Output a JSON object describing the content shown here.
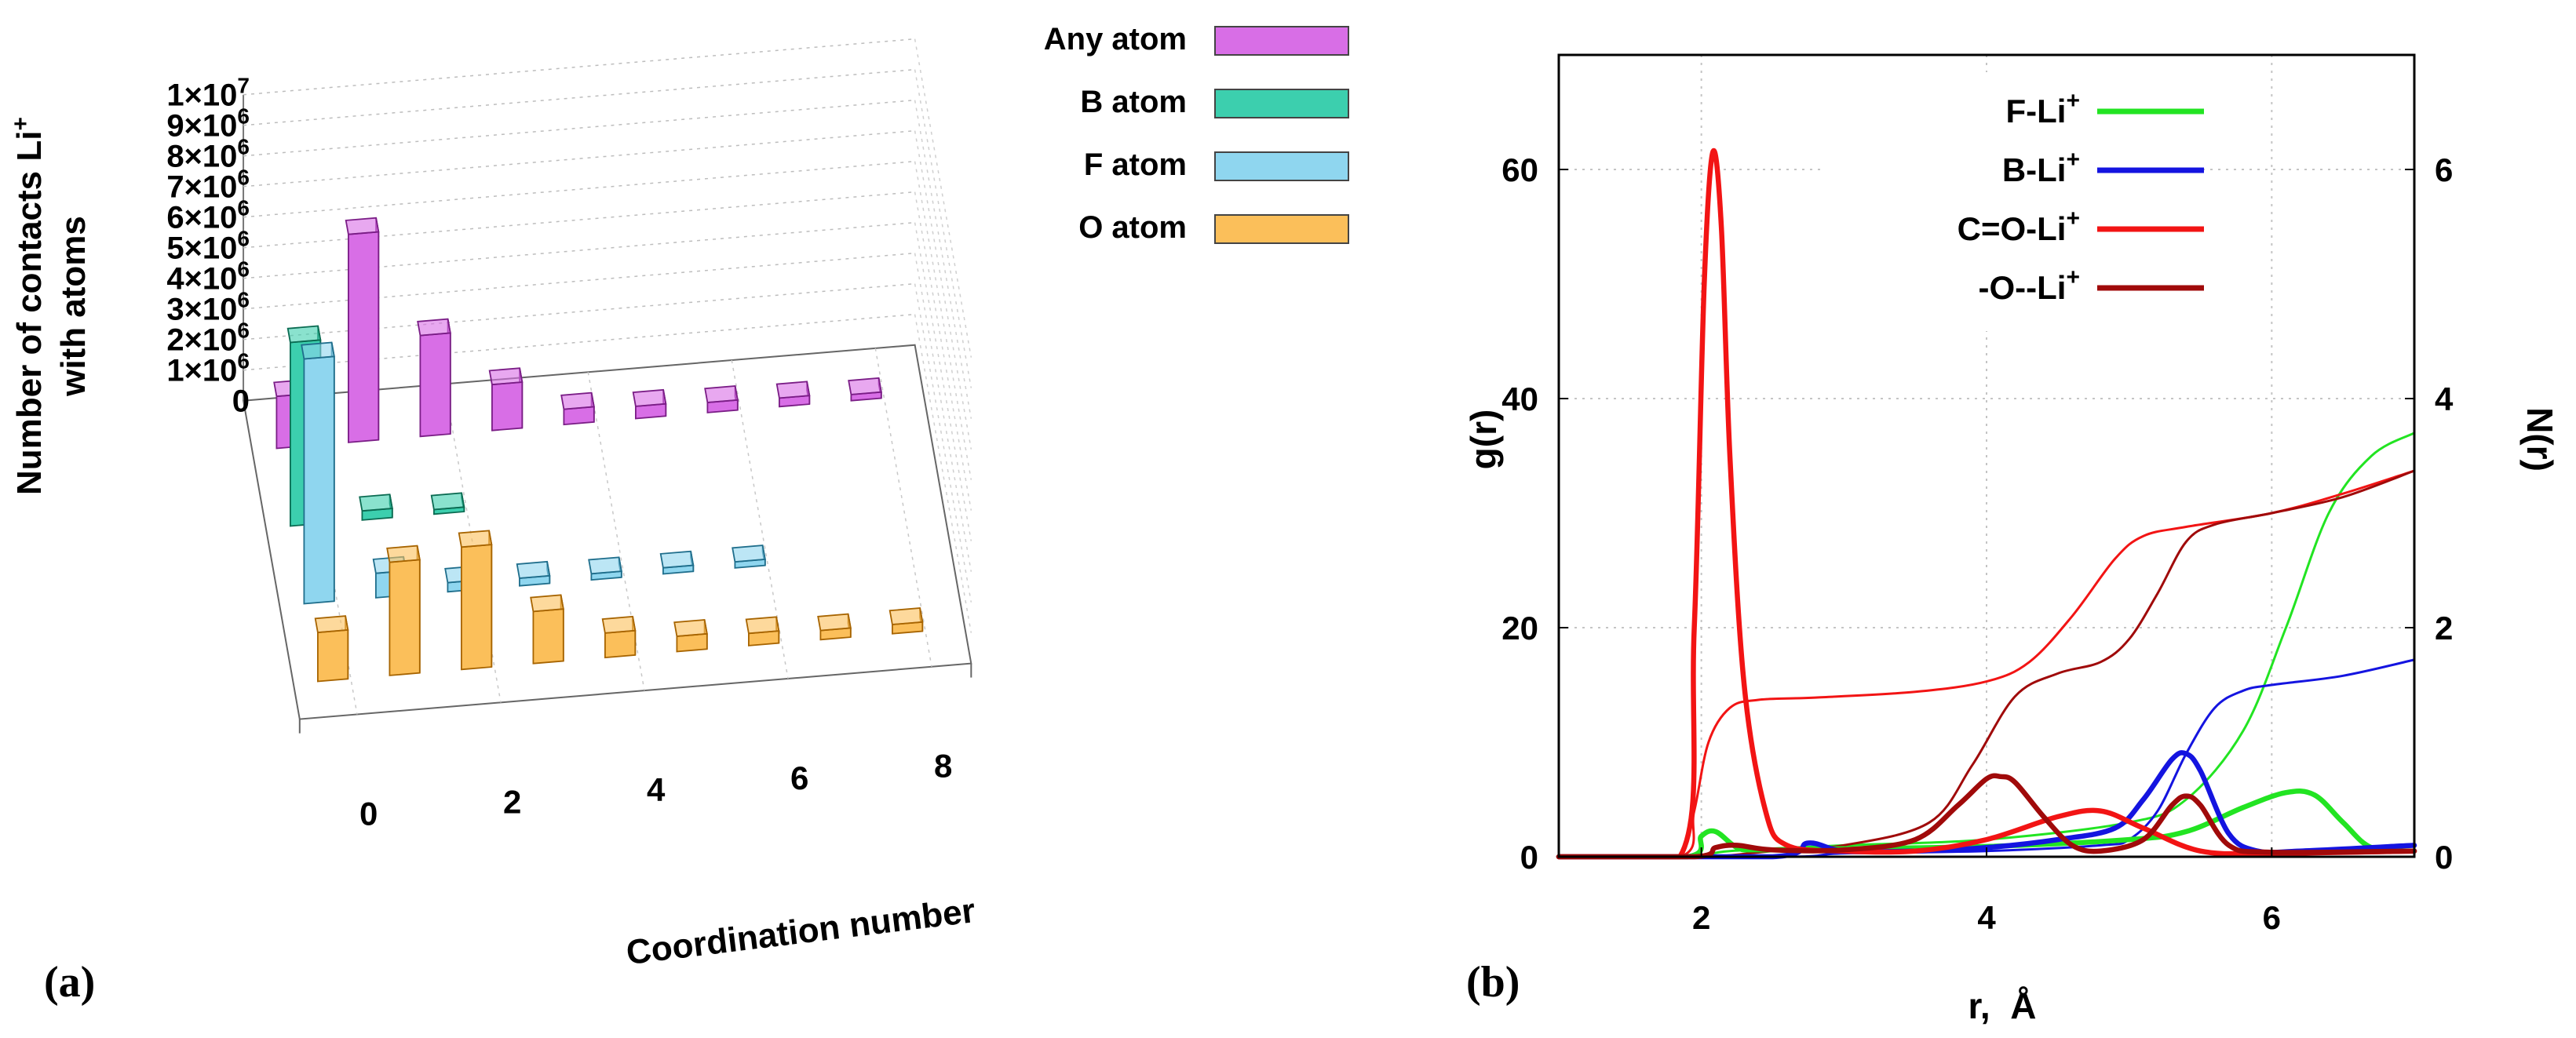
{
  "colors": {
    "any": "#d86ee6",
    "b": "#3ccfae",
    "f": "#8fd6ef",
    "o": "#fbbf5a",
    "any_dark": "#7a1d86",
    "b_dark": "#0b6b52",
    "f_dark": "#1f6e8c",
    "o_dark": "#a76400",
    "fli": "#22e422",
    "bli": "#1414e0",
    "coli": "#f21414",
    "oli": "#a00a0a"
  },
  "panels": {
    "a": "(a)",
    "b": "(b)"
  },
  "chart_data": [
    {
      "type": "bar",
      "subtype": "3d",
      "title": "",
      "xlabel": "Coordination number",
      "ylabel": "Number of contacts Li⁺ with atoms",
      "ylabel_line1": "Number of contacts Li",
      "ylabel_line1_sup": "+",
      "ylabel_line2": "with atoms",
      "categories": [
        0,
        1,
        2,
        3,
        4,
        5,
        6,
        7,
        8
      ],
      "x_tick_labels": [
        "0",
        "2",
        "4",
        "6",
        "8"
      ],
      "ylim": [
        0,
        10000000
      ],
      "y_ticks": [
        {
          "value": 10000000,
          "base": "1×10",
          "exp": "7"
        },
        {
          "value": 9000000,
          "base": "9×10",
          "exp": "6"
        },
        {
          "value": 8000000,
          "base": "8×10",
          "exp": "6"
        },
        {
          "value": 7000000,
          "base": "7×10",
          "exp": "6"
        },
        {
          "value": 6000000,
          "base": "6×10",
          "exp": "6"
        },
        {
          "value": 5000000,
          "base": "5×10",
          "exp": "6"
        },
        {
          "value": 4000000,
          "base": "4×10",
          "exp": "6"
        },
        {
          "value": 3000000,
          "base": "3×10",
          "exp": "6"
        },
        {
          "value": 2000000,
          "base": "2×10",
          "exp": "6"
        },
        {
          "value": 1000000,
          "base": "1×10",
          "exp": "6"
        },
        {
          "value": 0,
          "base": "0",
          "exp": ""
        }
      ],
      "series": [
        {
          "name": "Any atom",
          "key": "any",
          "values": [
            1700000,
            6800000,
            3300000,
            1500000,
            500000,
            400000,
            330000,
            280000,
            200000
          ]
        },
        {
          "name": "B atom",
          "key": "b",
          "values": [
            6000000,
            300000,
            150000,
            null,
            null,
            null,
            null,
            null,
            null
          ]
        },
        {
          "name": "F atom",
          "key": "f",
          "values": [
            8000000,
            800000,
            300000,
            250000,
            200000,
            200000,
            200000,
            null,
            null
          ]
        },
        {
          "name": "O atom",
          "key": "o",
          "values": [
            1600000,
            3700000,
            4000000,
            1700000,
            800000,
            500000,
            400000,
            300000,
            300000
          ]
        }
      ],
      "legend_position": "top-right",
      "grid": true
    },
    {
      "type": "line",
      "title": "",
      "xlabel": "r,  Å",
      "ylabel": "g(r)",
      "y2label": "N(r)",
      "xlim": [
        1,
        7
      ],
      "ylim": [
        0,
        70
      ],
      "y2lim": [
        0,
        7
      ],
      "x_ticks": [
        "2",
        "4",
        "6"
      ],
      "y_ticks": [
        "0",
        "20",
        "40",
        "60"
      ],
      "y2_ticks": [
        "0",
        "2",
        "4",
        "6"
      ],
      "grid": true,
      "legend_position": "top-right",
      "legend": [
        {
          "name": "F-Li",
          "sup": "+",
          "key": "fli"
        },
        {
          "name": "B-Li",
          "sup": "+",
          "key": "bli"
        },
        {
          "name": "C=O-Li",
          "sup": "+",
          "key": "coli"
        },
        {
          "name": "-O--Li",
          "sup": "+",
          "key": "oli"
        }
      ],
      "series": [
        {
          "name": "F-Li+ g(r)",
          "key": "fli",
          "axis": "left",
          "x": [
            1,
            1.9,
            2.0,
            2.1,
            2.25,
            2.4,
            3,
            4,
            5,
            5.4,
            5.8,
            6.1,
            6.3,
            6.5,
            6.7,
            7
          ],
          "y": [
            0,
            0,
            1.8,
            2.2,
            0.8,
            0.6,
            0.7,
            0.9,
            1.5,
            2.2,
            4.3,
            5.6,
            5.4,
            3,
            0.8,
            0.5
          ]
        },
        {
          "name": "F-Li+ N(r)",
          "key": "fli",
          "axis": "right",
          "thin": true,
          "x": [
            1,
            1.9,
            2.2,
            3,
            4,
            5,
            5.4,
            5.8,
            6.1,
            6.4,
            6.7,
            7
          ],
          "y": [
            0,
            0,
            0.05,
            0.1,
            0.15,
            0.3,
            0.5,
            1.1,
            2,
            3.0,
            3.5,
            3.7
          ]
        },
        {
          "name": "B-Li+ g(r)",
          "key": "bli",
          "axis": "left",
          "x": [
            1,
            2.5,
            2.75,
            3,
            3.5,
            4,
            4.5,
            4.9,
            5.1,
            5.3,
            5.4,
            5.5,
            5.7,
            5.9,
            6.2,
            7
          ],
          "y": [
            0,
            0,
            1.2,
            0.5,
            0.5,
            0.8,
            1.5,
            2.5,
            5,
            8.5,
            9,
            7.5,
            2,
            0.5,
            0.5,
            1
          ]
        },
        {
          "name": "B-Li+ N(r)",
          "key": "bli",
          "axis": "right",
          "thin": true,
          "x": [
            1,
            2.6,
            3,
            4,
            4.8,
            5.0,
            5.2,
            5.4,
            5.6,
            5.8,
            6.0,
            6.5,
            7
          ],
          "y": [
            0,
            0,
            0.03,
            0.05,
            0.1,
            0.15,
            0.4,
            0.9,
            1.3,
            1.45,
            1.5,
            1.58,
            1.72
          ]
        },
        {
          "name": "C=O-Li+ g(r)",
          "key": "coli",
          "axis": "left",
          "x": [
            1,
            1.85,
            1.95,
            2.02,
            2.08,
            2.14,
            2.2,
            2.3,
            2.45,
            2.6,
            3,
            3.5,
            4,
            4.5,
            4.8,
            5.1,
            5.5,
            6,
            7
          ],
          "y": [
            0,
            0,
            20,
            50,
            61.5,
            55,
            35,
            15,
            4,
            1,
            0.5,
            0.5,
            1.5,
            3.5,
            4,
            2.5,
            0.5,
            0.3,
            0.5
          ]
        },
        {
          "name": "C=O-Li+ N(r)",
          "key": "coli",
          "axis": "right",
          "thin": true,
          "x": [
            1,
            1.85,
            1.95,
            2.05,
            2.2,
            2.4,
            2.8,
            3.5,
            4,
            4.3,
            4.6,
            4.9,
            5.1,
            5.4,
            6,
            6.5,
            7
          ],
          "y": [
            0,
            0,
            0.4,
            1.0,
            1.3,
            1.37,
            1.39,
            1.44,
            1.53,
            1.7,
            2.1,
            2.6,
            2.8,
            2.88,
            3.0,
            3.17,
            3.37
          ]
        },
        {
          "name": "-O--Li+ g(r)",
          "key": "oli",
          "axis": "left",
          "x": [
            1,
            1.95,
            2.1,
            2.25,
            2.5,
            3,
            3.5,
            3.8,
            4.0,
            4.1,
            4.2,
            4.4,
            4.6,
            4.8,
            5.1,
            5.3,
            5.4,
            5.5,
            5.7,
            6,
            7
          ],
          "y": [
            0,
            0,
            0.8,
            1,
            0.6,
            0.6,
            1.5,
            4.5,
            6.8,
            7,
            6.5,
            3.5,
            1,
            0.5,
            1.5,
            4.5,
            5.3,
            4.5,
            1,
            0.4,
            0.5
          ]
        },
        {
          "name": "-O--Li+ N(r)",
          "key": "oli",
          "axis": "right",
          "thin": true,
          "x": [
            1,
            2.0,
            2.5,
            3,
            3.6,
            3.9,
            4.2,
            4.5,
            4.8,
            5.0,
            5.2,
            5.4,
            5.6,
            6,
            6.5,
            7
          ],
          "y": [
            0,
            0,
            0.05,
            0.1,
            0.3,
            0.8,
            1.4,
            1.6,
            1.7,
            1.9,
            2.3,
            2.75,
            2.9,
            3.0,
            3.14,
            3.37
          ]
        }
      ]
    }
  ]
}
